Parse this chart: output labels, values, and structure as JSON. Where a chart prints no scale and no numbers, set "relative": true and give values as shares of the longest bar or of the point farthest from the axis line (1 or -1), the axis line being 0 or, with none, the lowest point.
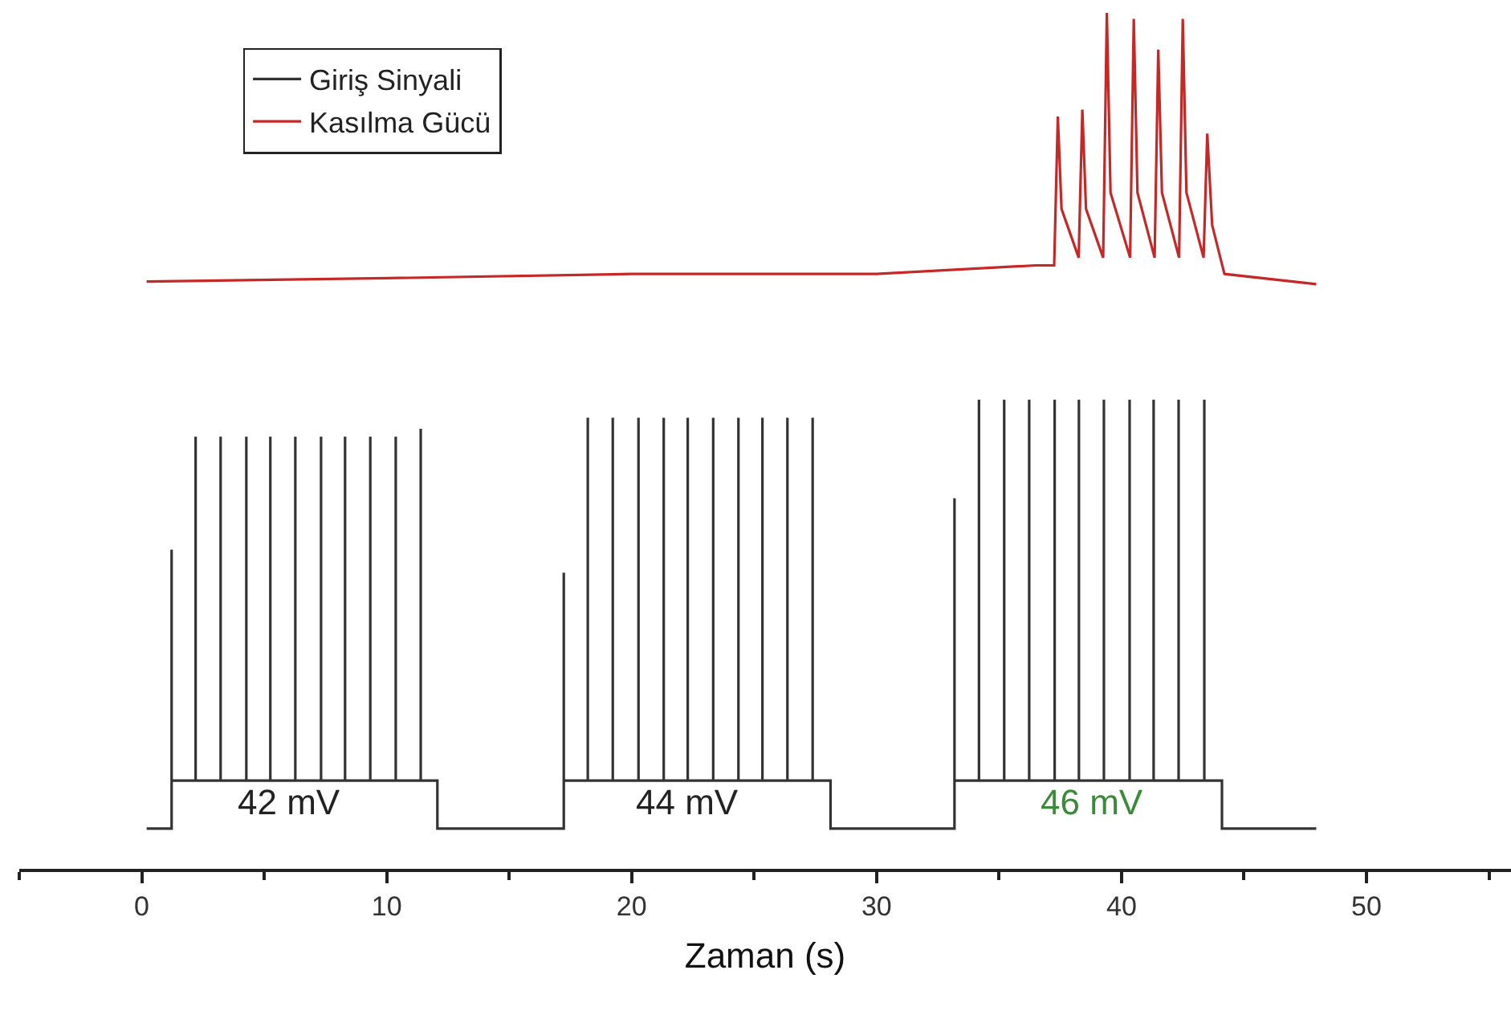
{
  "chart_data": {
    "type": "line",
    "relative": true,
    "xlabel": "Zaman (s)",
    "xlim": [
      -5,
      55.9
    ],
    "xticks": [
      {
        "value": -5,
        "label": null
      },
      0,
      {
        "value": 5,
        "label": null
      },
      10,
      {
        "value": 15,
        "label": null
      },
      20,
      {
        "value": 25,
        "label": null
      },
      30,
      {
        "value": 35,
        "label": null
      },
      40,
      {
        "value": 45,
        "label": null
      },
      50,
      {
        "value": 55,
        "label": null
      }
    ],
    "legend": "top left",
    "marker": "none",
    "line_style": "solid",
    "tick_labels": "x",
    "series": [
      {
        "name": "Giriş Sinyali",
        "color": "#333333",
        "x": [
          0.2,
          1.22,
          1.22,
          1.22,
          2.2,
          2.2,
          2.2,
          3.22,
          3.22,
          3.22,
          4.27,
          4.27,
          4.27,
          5.25,
          5.25,
          5.25,
          6.27,
          6.27,
          6.27,
          7.32,
          7.32,
          7.32,
          8.3,
          8.3,
          8.3,
          9.33,
          9.33,
          9.33,
          10.37,
          10.37,
          10.37,
          11.39,
          11.39,
          11.39,
          12.07,
          12.07,
          17.23,
          17.23,
          17.23,
          18.21,
          18.21,
          18.21,
          19.23,
          19.23,
          19.23,
          20.28,
          20.28,
          20.28,
          21.31,
          21.31,
          21.31,
          22.29,
          22.29,
          22.29,
          23.33,
          23.33,
          23.33,
          24.36,
          24.36,
          24.36,
          25.34,
          25.34,
          25.34,
          26.36,
          26.36,
          26.36,
          27.39,
          27.39,
          27.39,
          28.12,
          28.12,
          33.18,
          33.18,
          33.18,
          34.18,
          34.18,
          34.18,
          35.21,
          35.21,
          35.21,
          36.23,
          36.23,
          36.23,
          37.27,
          37.27,
          37.27,
          38.26,
          38.26,
          38.26,
          39.28,
          39.28,
          39.28,
          40.33,
          40.33,
          40.33,
          41.31,
          41.31,
          41.31,
          42.33,
          42.33,
          42.33,
          43.38,
          43.38,
          43.38,
          44.1,
          44.1,
          47.95
        ],
        "values": [
          0.047,
          0.047,
          0.373,
          0.103,
          0.103,
          0.505,
          0.103,
          0.103,
          0.505,
          0.103,
          0.103,
          0.505,
          0.103,
          0.103,
          0.505,
          0.103,
          0.103,
          0.505,
          0.103,
          0.103,
          0.505,
          0.103,
          0.103,
          0.505,
          0.103,
          0.103,
          0.505,
          0.103,
          0.103,
          0.505,
          0.103,
          0.103,
          0.514,
          0.103,
          0.103,
          0.047,
          0.047,
          0.346,
          0.103,
          0.103,
          0.527,
          0.103,
          0.103,
          0.527,
          0.103,
          0.103,
          0.527,
          0.103,
          0.103,
          0.527,
          0.103,
          0.103,
          0.527,
          0.103,
          0.103,
          0.527,
          0.103,
          0.103,
          0.527,
          0.103,
          0.103,
          0.527,
          0.103,
          0.103,
          0.527,
          0.103,
          0.103,
          0.527,
          0.103,
          0.103,
          0.047,
          0.047,
          0.433,
          0.103,
          0.103,
          0.548,
          0.103,
          0.103,
          0.548,
          0.103,
          0.103,
          0.548,
          0.103,
          0.103,
          0.548,
          0.103,
          0.103,
          0.548,
          0.103,
          0.103,
          0.548,
          0.103,
          0.103,
          0.548,
          0.103,
          0.103,
          0.548,
          0.103,
          0.103,
          0.548,
          0.103,
          0.103,
          0.548,
          0.103,
          0.103,
          0.047,
          0.047
        ]
      },
      {
        "name": "Kasılma Gücü",
        "color": "#c62828",
        "x": [
          0.2,
          10,
          20,
          30,
          36.5,
          37.25,
          37.4,
          37.55,
          38.25,
          38.4,
          38.55,
          39.25,
          39.4,
          39.55,
          40.35,
          40.5,
          40.65,
          41.35,
          41.5,
          41.65,
          42.35,
          42.5,
          42.65,
          43.35,
          43.5,
          43.7,
          44.2,
          47.95
        ],
        "values": [
          0.686,
          0.69,
          0.695,
          0.695,
          0.705,
          0.705,
          0.879,
          0.771,
          0.714,
          0.887,
          0.771,
          0.714,
          1.0,
          0.79,
          0.714,
          0.993,
          0.79,
          0.714,
          0.957,
          0.79,
          0.714,
          0.993,
          0.79,
          0.714,
          0.859,
          0.752,
          0.695,
          0.683
        ]
      }
    ],
    "annotations": [
      "42 mV",
      "44 mV",
      "46 mV"
    ]
  }
}
